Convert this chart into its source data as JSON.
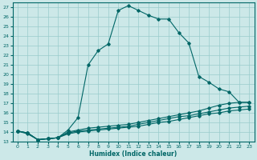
{
  "xlabel": "Humidex (Indice chaleur)",
  "background_color": "#cce8e8",
  "grid_color": "#99cccc",
  "line_color": "#006666",
  "xlim": [
    -0.5,
    23.5
  ],
  "ylim": [
    13,
    27.5
  ],
  "xticks": [
    0,
    1,
    2,
    3,
    4,
    5,
    6,
    7,
    8,
    9,
    10,
    11,
    12,
    13,
    14,
    15,
    16,
    17,
    18,
    19,
    20,
    21,
    22,
    23
  ],
  "yticks": [
    13,
    14,
    15,
    16,
    17,
    18,
    19,
    20,
    21,
    22,
    23,
    24,
    25,
    26,
    27
  ],
  "series": [
    {
      "x": [
        0,
        1,
        2,
        3,
        4,
        5,
        6,
        7,
        8,
        9,
        10,
        11,
        12,
        13,
        14,
        15,
        16,
        17,
        18,
        19,
        20,
        21,
        22,
        23
      ],
      "y": [
        14.1,
        13.8,
        13.2,
        13.3,
        13.4,
        14.2,
        15.5,
        21.0,
        22.5,
        23.2,
        26.7,
        27.2,
        26.7,
        26.2,
        25.8,
        25.8,
        24.4,
        23.3,
        19.8,
        19.2,
        18.5,
        18.2,
        17.1,
        17.1
      ]
    },
    {
      "x": [
        0,
        1,
        2,
        3,
        4,
        5,
        6,
        7,
        8,
        9,
        10,
        11,
        12,
        13,
        14,
        15,
        16,
        17,
        18,
        19,
        20,
        21,
        22,
        23
      ],
      "y": [
        14.1,
        13.9,
        13.2,
        13.3,
        13.4,
        14.0,
        14.2,
        14.4,
        14.5,
        14.6,
        14.7,
        14.8,
        15.0,
        15.2,
        15.4,
        15.6,
        15.8,
        16.0,
        16.2,
        16.5,
        16.8,
        17.0,
        17.1,
        17.1
      ]
    },
    {
      "x": [
        0,
        1,
        2,
        3,
        4,
        5,
        6,
        7,
        8,
        9,
        10,
        11,
        12,
        13,
        14,
        15,
        16,
        17,
        18,
        19,
        20,
        21,
        22,
        23
      ],
      "y": [
        14.1,
        13.9,
        13.2,
        13.3,
        13.4,
        13.9,
        14.1,
        14.2,
        14.3,
        14.4,
        14.5,
        14.6,
        14.8,
        15.0,
        15.2,
        15.4,
        15.6,
        15.7,
        15.9,
        16.1,
        16.3,
        16.5,
        16.6,
        16.7
      ]
    },
    {
      "x": [
        0,
        1,
        2,
        3,
        4,
        5,
        6,
        7,
        8,
        9,
        10,
        11,
        12,
        13,
        14,
        15,
        16,
        17,
        18,
        19,
        20,
        21,
        22,
        23
      ],
      "y": [
        14.1,
        13.9,
        13.2,
        13.3,
        13.4,
        13.8,
        14.0,
        14.1,
        14.2,
        14.3,
        14.4,
        14.5,
        14.6,
        14.8,
        15.0,
        15.1,
        15.3,
        15.5,
        15.7,
        15.9,
        16.0,
        16.2,
        16.3,
        16.4
      ]
    }
  ]
}
